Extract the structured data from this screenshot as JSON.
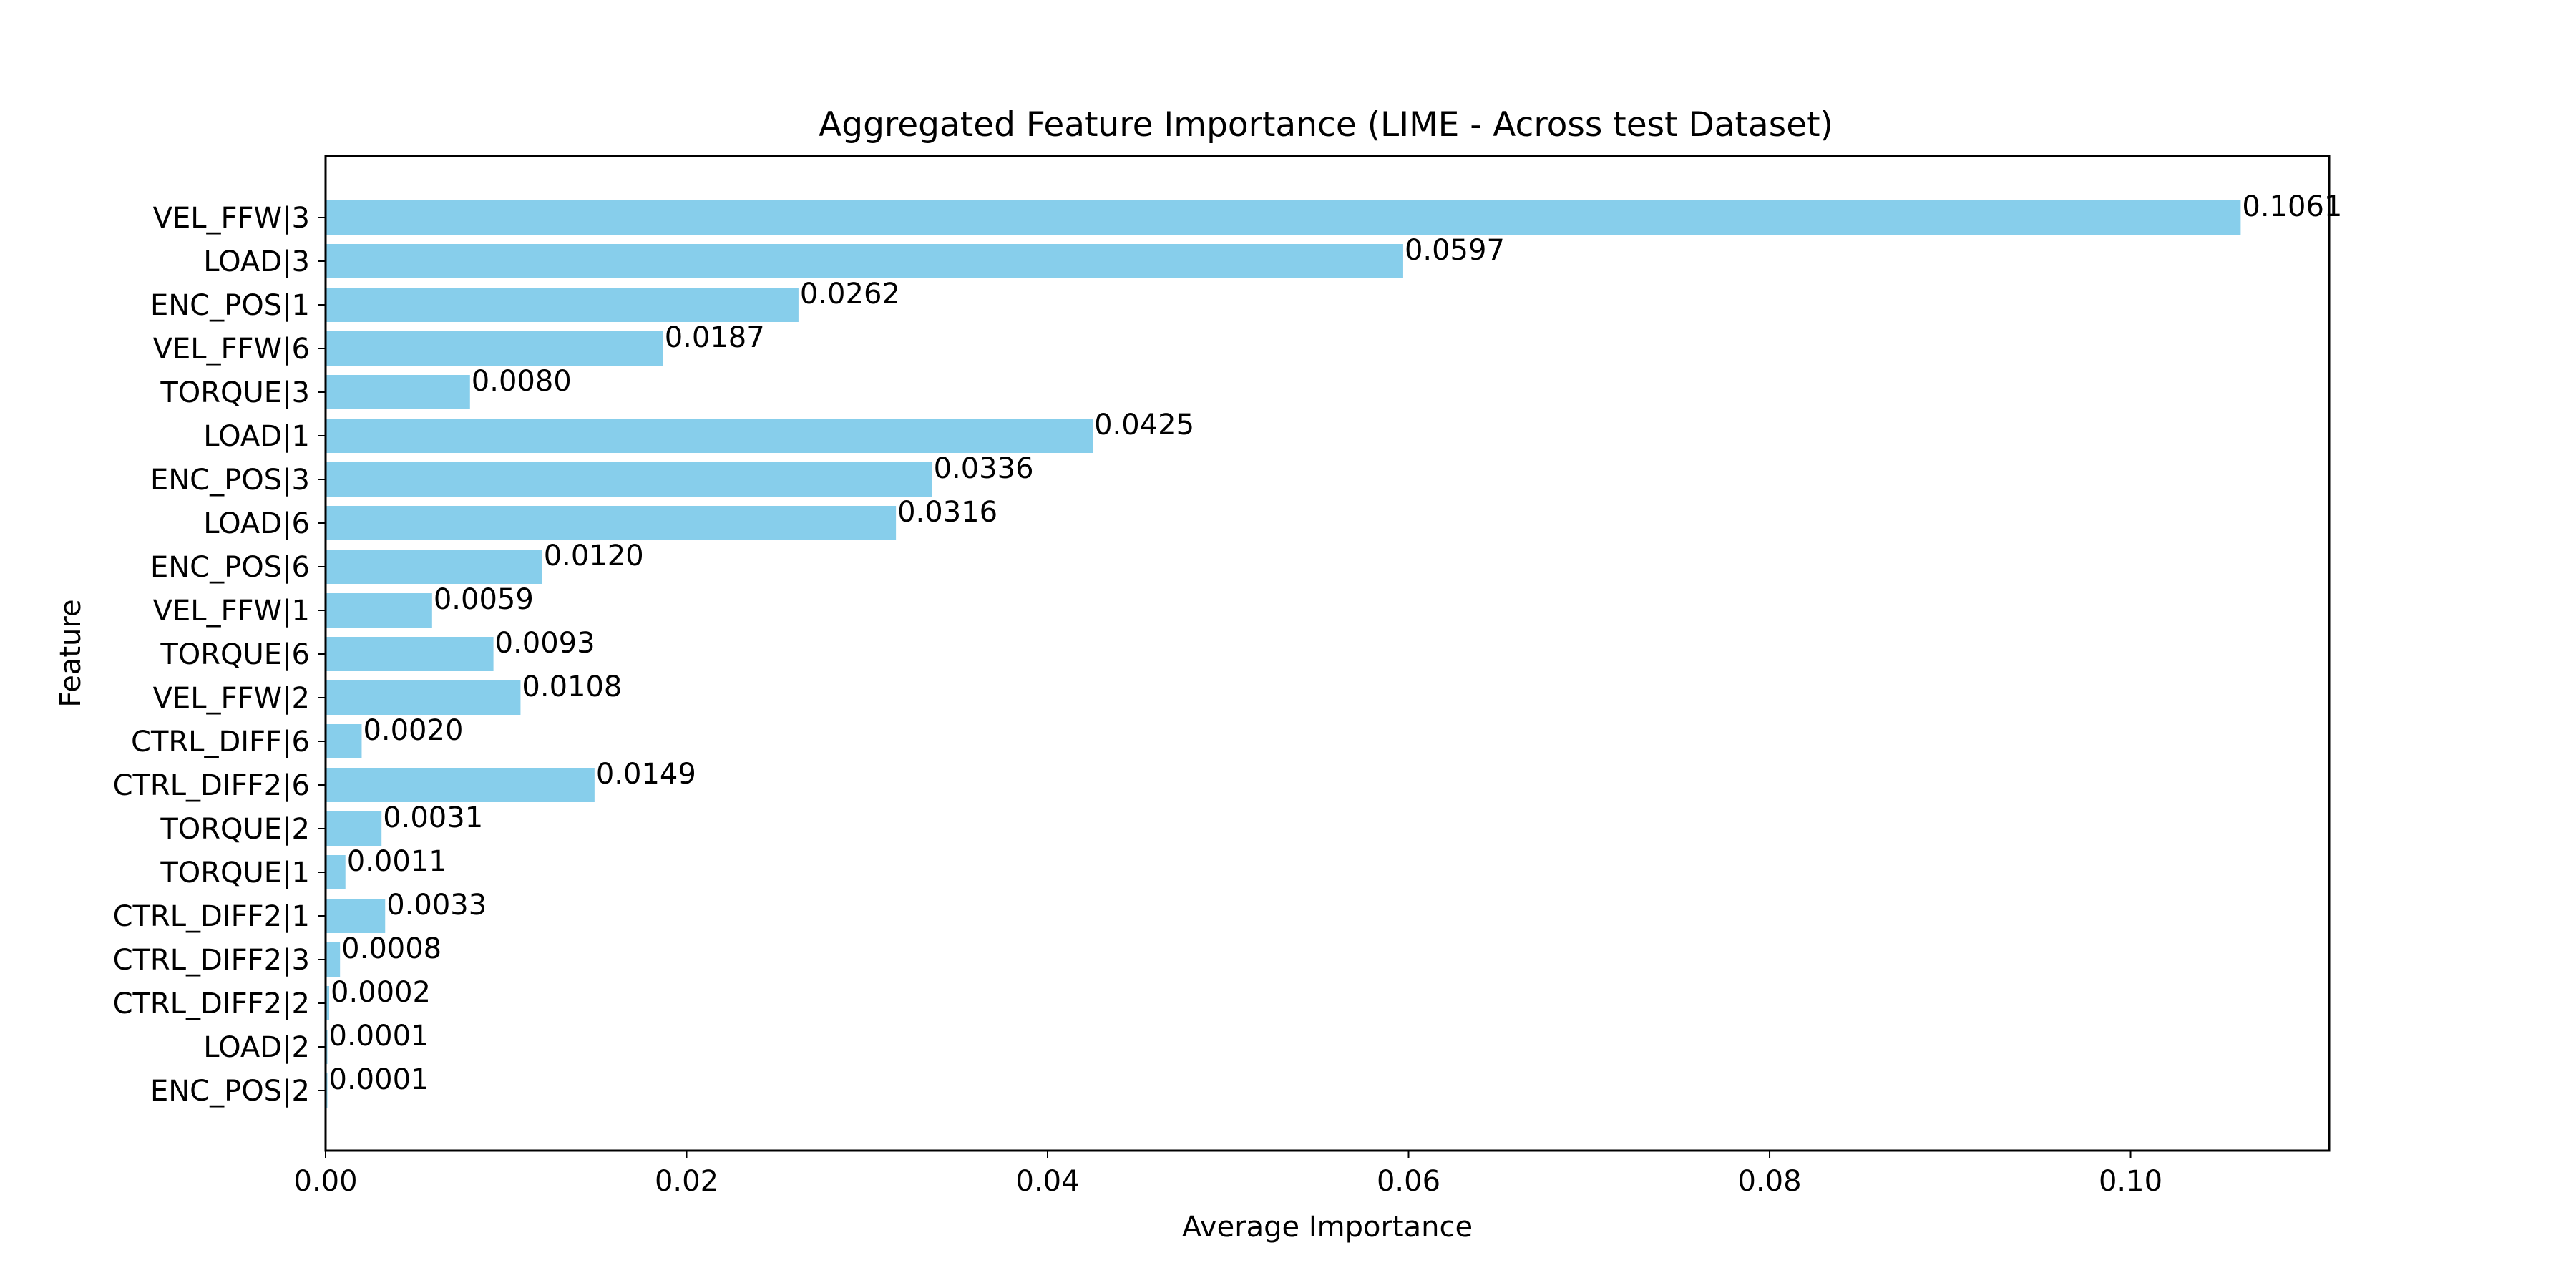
{
  "chart_data": {
    "type": "bar",
    "orientation": "horizontal",
    "title": "Aggregated Feature Importance (LIME - Across test Dataset)",
    "xlabel": "Average Importance",
    "ylabel": "Feature",
    "xlim": [
      0,
      0.111
    ],
    "xticks": [
      "0.00",
      "0.02",
      "0.04",
      "0.06",
      "0.08",
      "0.10"
    ],
    "xtick_values": [
      0,
      0.02,
      0.04,
      0.06,
      0.08,
      0.1
    ],
    "bar_color": "#87ceeb",
    "categories": [
      "VEL_FFW|3",
      "LOAD|3",
      "ENC_POS|1",
      "VEL_FFW|6",
      "TORQUE|3",
      "LOAD|1",
      "ENC_POS|3",
      "LOAD|6",
      "ENC_POS|6",
      "VEL_FFW|1",
      "TORQUE|6",
      "VEL_FFW|2",
      "CTRL_DIFF|6",
      "CTRL_DIFF2|6",
      "TORQUE|2",
      "TORQUE|1",
      "CTRL_DIFF2|1",
      "CTRL_DIFF2|3",
      "CTRL_DIFF2|2",
      "LOAD|2",
      "ENC_POS|2"
    ],
    "values": [
      0.1061,
      0.0597,
      0.0262,
      0.0187,
      0.008,
      0.0425,
      0.0336,
      0.0316,
      0.012,
      0.0059,
      0.0093,
      0.0108,
      0.002,
      0.0149,
      0.0031,
      0.0011,
      0.0033,
      0.0008,
      0.0002,
      0.0001,
      0.0001
    ],
    "value_labels": [
      "0.1061",
      "0.0597",
      "0.0262",
      "0.0187",
      "0.0080",
      "0.0425",
      "0.0336",
      "0.0316",
      "0.0120",
      "0.0059",
      "0.0093",
      "0.0108",
      "0.0020",
      "0.0149",
      "0.0031",
      "0.0011",
      "0.0033",
      "0.0008",
      "0.0002",
      "0.0001",
      "0.0001"
    ],
    "grid": false,
    "legend": false
  }
}
